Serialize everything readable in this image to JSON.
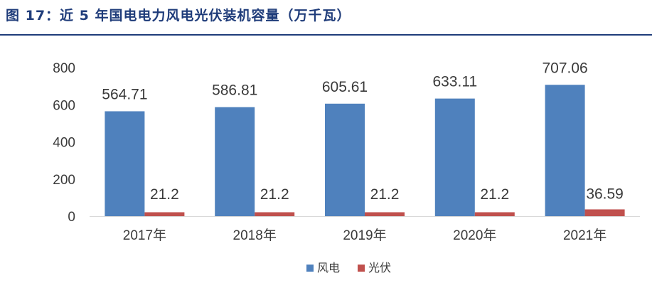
{
  "figure": {
    "title": "图 17：近 5 年国电电力风电光伏装机容量（万千瓦）"
  },
  "colors": {
    "title": "#1f3c7a",
    "wind": "#4f81bd",
    "solar": "#c0504d"
  },
  "chart_data": {
    "type": "bar",
    "title": "近 5 年国电电力风电光伏装机容量（万千瓦）",
    "categories": [
      "2017年",
      "2018年",
      "2019年",
      "2020年",
      "2021年"
    ],
    "series": [
      {
        "name": "风电",
        "values": [
          564.71,
          586.81,
          605.61,
          633.11,
          707.06
        ],
        "labels": [
          "564.71",
          "586.81",
          "605.61",
          "633.11",
          "707.06"
        ]
      },
      {
        "name": "光伏",
        "values": [
          21.2,
          21.2,
          21.2,
          21.2,
          36.59
        ],
        "labels": [
          "21.2",
          "21.2",
          "21.2",
          "21.2",
          "36.59"
        ]
      }
    ],
    "ylim": [
      0,
      800
    ],
    "yticks": [
      0,
      200,
      400,
      600,
      800
    ],
    "xlabel": "",
    "ylabel": "",
    "grid": false,
    "legend_position": "bottom-center"
  }
}
